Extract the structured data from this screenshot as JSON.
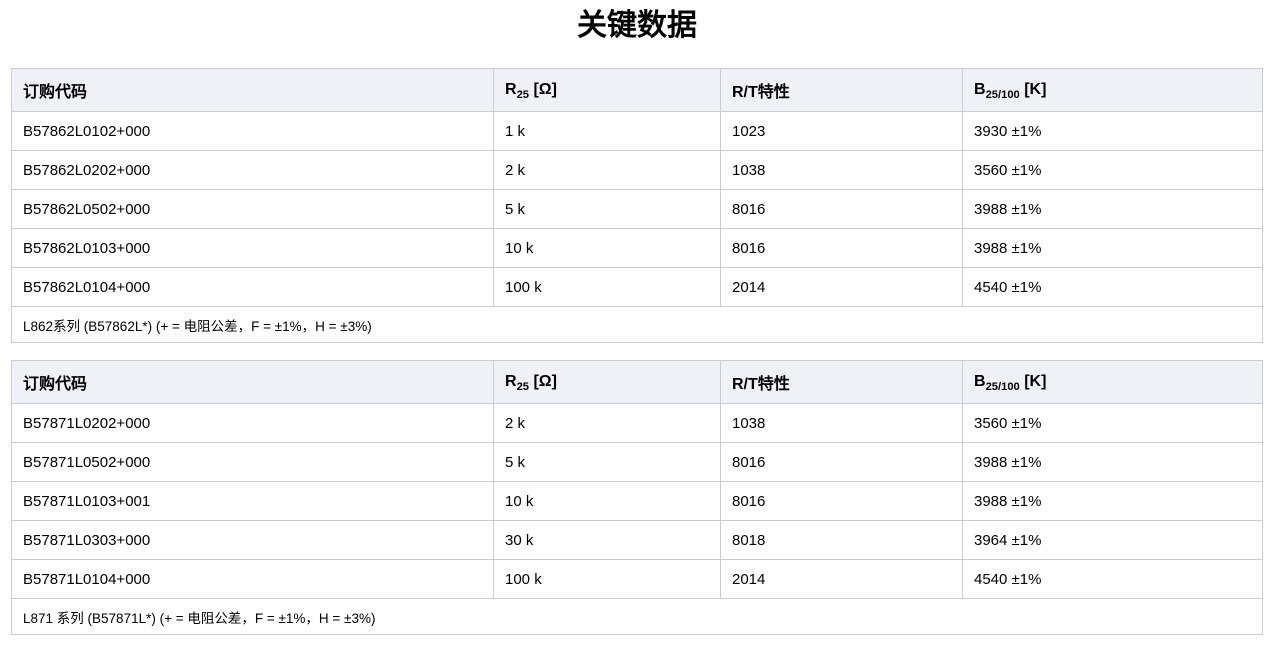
{
  "page": {
    "title": "关键数据"
  },
  "colors": {
    "header_bg": "#eef1f6",
    "border": "#c9cdd2",
    "text": "#000000",
    "background": "#ffffff"
  },
  "tables": [
    {
      "headers": [
        {
          "text": "订购代码",
          "sub": "",
          "unit": ""
        },
        {
          "text": "R",
          "sub": "25",
          "unit": " [Ω]"
        },
        {
          "text": "R/T特性",
          "sub": "",
          "unit": ""
        },
        {
          "text": "B",
          "sub": "25/100",
          "unit": " [K]"
        }
      ],
      "rows": [
        [
          "B57862L0102+000",
          "1 k",
          "1023",
          "3930 ±1%"
        ],
        [
          "B57862L0202+000",
          "2 k",
          "1038",
          "3560 ±1%"
        ],
        [
          "B57862L0502+000",
          "5 k",
          "8016",
          "3988 ±1%"
        ],
        [
          "B57862L0103+000",
          "10 k",
          "8016",
          "3988 ±1%"
        ],
        [
          "B57862L0104+000",
          "100 k",
          "2014",
          "4540 ±1%"
        ]
      ],
      "footnote": "L862系列 (B57862L*) (+ = 电阻公差，F = ±1%，H = ±3%)"
    },
    {
      "headers": [
        {
          "text": "订购代码",
          "sub": "",
          "unit": ""
        },
        {
          "text": "R",
          "sub": "25",
          "unit": " [Ω]"
        },
        {
          "text": "R/T特性",
          "sub": "",
          "unit": ""
        },
        {
          "text": "B",
          "sub": "25/100",
          "unit": " [K]"
        }
      ],
      "rows": [
        [
          "B57871L0202+000",
          "2 k",
          "1038",
          "3560 ±1%"
        ],
        [
          "B57871L0502+000",
          "5 k",
          "8016",
          "3988 ±1%"
        ],
        [
          "B57871L0103+001",
          "10 k",
          "8016",
          "3988 ±1%"
        ],
        [
          "B57871L0303+000",
          "30 k",
          "8018",
          "3964 ±1%"
        ],
        [
          "B57871L0104+000",
          "100 k",
          "2014",
          "4540 ±1%"
        ]
      ],
      "footnote": "L871 系列 (B57871L*) (+ = 电阻公差，F = ±1%，H = ±3%)"
    }
  ]
}
